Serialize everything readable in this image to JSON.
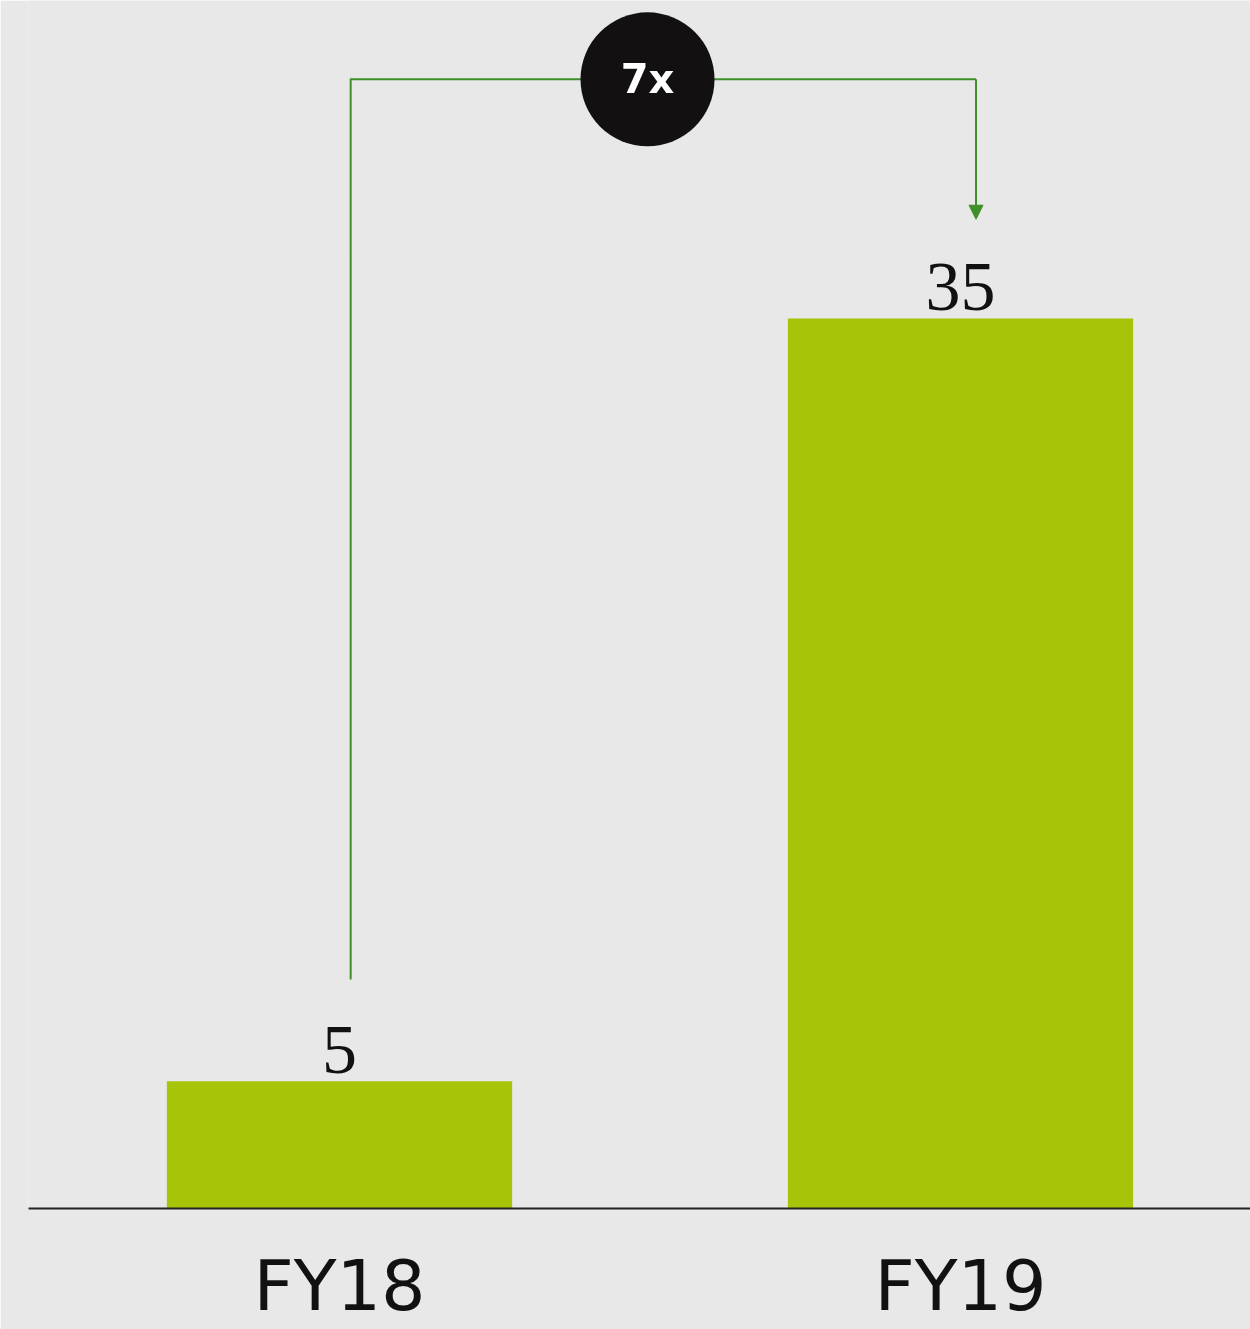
{
  "chart_data": {
    "type": "bar",
    "categories": [
      "FY18",
      "FY19"
    ],
    "values": [
      5,
      35
    ],
    "color": "#a7c408",
    "data_labels": true,
    "ylim": [
      0,
      47.5
    ],
    "tick_labels": "x",
    "annotations": [
      "7x"
    ]
  }
}
